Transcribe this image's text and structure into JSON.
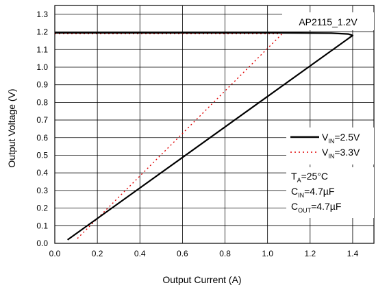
{
  "chart_data": {
    "type": "line",
    "title": "AP2115_1.2V",
    "xlabel": "Output Current (A)",
    "ylabel": "Output Voltage (V)",
    "xlim": [
      0.0,
      1.5
    ],
    "ylim": [
      0.0,
      1.35
    ],
    "xticks": [
      0.0,
      0.2,
      0.4,
      0.6,
      0.8,
      1.0,
      1.2,
      1.4
    ],
    "xtick_labels": [
      "0.0",
      "0.2",
      "0.4",
      "0.6",
      "0.8",
      "1.0",
      "1.2",
      "1.4"
    ],
    "yticks": [
      0.0,
      0.1,
      0.2,
      0.3,
      0.4,
      0.5,
      0.6,
      0.7,
      0.8,
      0.9,
      1.0,
      1.1,
      1.2,
      1.3
    ],
    "ytick_labels": [
      "0.0",
      "0.1",
      "0.2",
      "0.3",
      "0.4",
      "0.5",
      "0.6",
      "0.7",
      "0.8",
      "0.9",
      "1.0",
      "1.1",
      "1.2",
      "1.3"
    ],
    "grid": true,
    "legend_position": "right",
    "series": [
      {
        "name_main": "V",
        "name_sub": "IN",
        "name_rest": "=2.5V",
        "color": "#000000",
        "style": "solid",
        "x": [
          0.0,
          0.5,
          1.0,
          1.3,
          1.38,
          1.4,
          0.06
        ],
        "y": [
          1.195,
          1.195,
          1.195,
          1.193,
          1.188,
          1.18,
          0.02
        ]
      },
      {
        "name_main": "V",
        "name_sub": "IN",
        "name_rest": "=3.3V",
        "color": "#e00000",
        "style": "dotted",
        "x": [
          0.0,
          0.5,
          1.0,
          1.05,
          1.065,
          0.1
        ],
        "y": [
          1.19,
          1.19,
          1.19,
          1.19,
          1.185,
          0.02
        ]
      }
    ],
    "conditions": [
      {
        "main": "T",
        "sub": "A",
        "rest": "=25°C"
      },
      {
        "main": "C",
        "sub": "IN",
        "rest": "=4.7µF"
      },
      {
        "main": "C",
        "sub": "OUT",
        "rest": "=4.7µF"
      }
    ]
  }
}
